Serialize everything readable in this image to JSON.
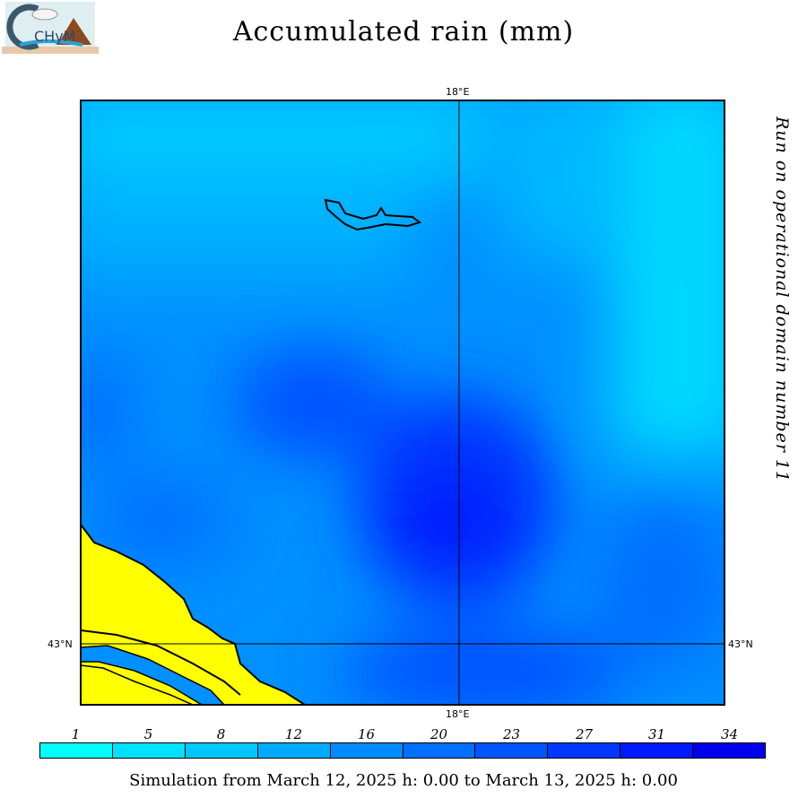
{
  "header": {
    "title": "Accumulated rain (mm)",
    "logo_text": "CHyM"
  },
  "side_text": "Run on operational domain number 11",
  "map": {
    "lon_label_top": "18°E",
    "lon_label_bottom": "18°E",
    "lat_label_left": "43°N",
    "lat_label_right": "43°N",
    "land_color": "#ffff00"
  },
  "legend": {
    "labels": [
      "1",
      "5",
      "8",
      "12",
      "16",
      "20",
      "23",
      "27",
      "31",
      "34"
    ],
    "colors": [
      "#00ffff",
      "#00e2ff",
      "#00c6ff",
      "#00aaff",
      "#008cff",
      "#0070ff",
      "#0055ff",
      "#0038ff",
      "#001aff",
      "#0000ee"
    ]
  },
  "footer": "Simulation from March 12, 2025 h: 0.00 to March 13, 2025 h: 0.00"
}
